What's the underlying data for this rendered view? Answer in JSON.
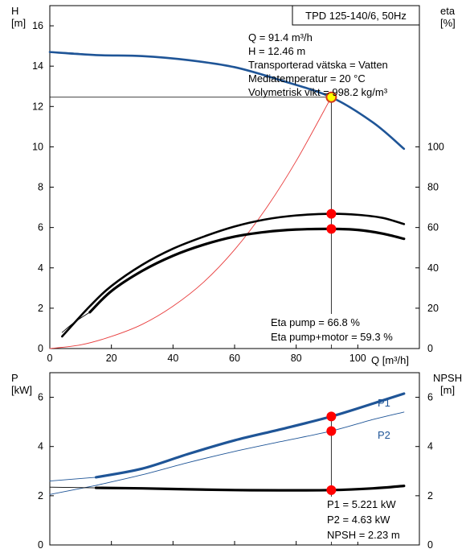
{
  "chart_data": [
    {
      "type": "line",
      "title": "TPD 125-140/6, 50Hz",
      "x_axis": {
        "label": "Q [m³/h]",
        "range": [
          0,
          120
        ],
        "ticks": [
          0,
          20,
          40,
          60,
          80,
          100
        ]
      },
      "y_left": {
        "label": "H",
        "unit": "[m]",
        "range": [
          0,
          17
        ],
        "ticks": [
          0,
          2,
          4,
          6,
          8,
          10,
          12,
          14,
          16
        ]
      },
      "y_right": {
        "label": "eta",
        "unit": "[%]",
        "range": [
          0,
          170
        ],
        "ticks": [
          0,
          20,
          40,
          60,
          80,
          100
        ]
      },
      "grid": false,
      "series": [
        {
          "color": "#1f5597",
          "axis": "left",
          "x": [
            0,
            15,
            30,
            45,
            60,
            75,
            91.4,
            105,
            115
          ],
          "y": [
            14.7,
            14.55,
            14.5,
            14.3,
            13.95,
            13.3,
            12.46,
            11.2,
            9.9
          ]
        },
        {
          "color": "#1f5597",
          "axis": "left",
          "style": "thin",
          "x": [
            0,
            8,
            15
          ],
          "y": [
            14.7,
            14.65,
            14.55
          ]
        },
        {
          "color": "#e83c3c",
          "axis": "left",
          "x": [
            0,
            10,
            20,
            30,
            40,
            50,
            60,
            70,
            80,
            91.4
          ],
          "y": [
            0,
            0.18,
            0.6,
            1.2,
            2.1,
            3.3,
            4.9,
            6.9,
            9.3,
            12.46
          ]
        },
        {
          "color": "#000000",
          "axis": "right",
          "x": [
            4,
            13,
            20,
            30,
            40,
            50,
            60,
            70,
            80,
            91.4,
            100,
            108,
            115
          ],
          "y": [
            6,
            21,
            31,
            41.5,
            49.5,
            55.5,
            60.5,
            64,
            66,
            66.8,
            66.3,
            64.8,
            61.7
          ]
        },
        {
          "color": "#000000",
          "axis": "right",
          "style": "thick",
          "x": [
            13,
            20,
            30,
            40,
            50,
            60,
            70,
            80,
            91.4,
            100,
            108,
            115
          ],
          "y": [
            18,
            28.5,
            38.5,
            46,
            51.5,
            55.5,
            57.8,
            59,
            59.3,
            58.8,
            57,
            54.4
          ]
        },
        {
          "color": "#000000",
          "axis": "right",
          "style": "thin",
          "x": [
            4,
            8,
            13
          ],
          "y": [
            8,
            13,
            18
          ]
        }
      ],
      "operating_point": {
        "x": 91.4,
        "y": 12.46,
        "color": "#ffff00"
      },
      "markers": [
        {
          "x": 91.4,
          "y": 66.8,
          "axis": "right",
          "color": "#ff0000"
        },
        {
          "x": 91.4,
          "y": 59.3,
          "axis": "right",
          "color": "#ff0000"
        }
      ],
      "annotations": [
        "Q = 91.4 m³/h",
        "H = 12.46 m",
        "Transporterad vätska = Vatten",
        "Mediatemperatur = 20 °C",
        "Volymetrisk vikt = 998.2 kg/m³"
      ],
      "eta_annotations": [
        "Eta pump = 66.8 %",
        "Eta pump+motor = 59.3 %"
      ]
    },
    {
      "type": "line",
      "x_axis": {
        "range": [
          0,
          120
        ]
      },
      "y_left": {
        "label": "P",
        "unit": "[kW]",
        "range": [
          0,
          7
        ],
        "ticks": [
          0,
          2,
          4,
          6
        ]
      },
      "y_right": {
        "label": "NPSH",
        "unit": "[m]",
        "range": [
          0,
          7
        ],
        "ticks": [
          0,
          2,
          4,
          6
        ]
      },
      "grid": false,
      "series": [
        {
          "name": "P1",
          "color": "#1f5597",
          "style": "thick",
          "x": [
            15,
            30,
            45,
            60,
            75,
            91.4,
            105,
            115
          ],
          "y": [
            2.75,
            3.1,
            3.7,
            4.25,
            4.7,
            5.221,
            5.75,
            6.15
          ]
        },
        {
          "name": "P2",
          "color": "#1f5597",
          "style": "thin",
          "x": [
            15,
            30,
            45,
            60,
            75,
            91.4,
            105,
            115
          ],
          "y": [
            2.42,
            2.85,
            3.35,
            3.8,
            4.2,
            4.63,
            5.1,
            5.4
          ]
        },
        {
          "color": "#1f5597",
          "style": "thin",
          "x": [
            0,
            15
          ],
          "y": [
            2.6,
            2.75
          ]
        },
        {
          "color": "#1f5597",
          "style": "thin",
          "x": [
            0,
            15
          ],
          "y": [
            2.05,
            2.42
          ]
        },
        {
          "color": "#000000",
          "style": "thick",
          "x": [
            15,
            30,
            45,
            60,
            75,
            91.4,
            105,
            115
          ],
          "y": [
            2.32,
            2.3,
            2.26,
            2.23,
            2.22,
            2.23,
            2.3,
            2.4
          ]
        },
        {
          "color": "#000000",
          "style": "thin",
          "x": [
            0,
            15
          ],
          "y": [
            2.35,
            2.32
          ]
        }
      ],
      "markers": [
        {
          "x": 91.4,
          "y": 5.221,
          "color": "#ff0000"
        },
        {
          "x": 91.4,
          "y": 4.63,
          "color": "#ff0000"
        },
        {
          "x": 91.4,
          "y": 2.23,
          "color": "#ff0000"
        }
      ],
      "annotations": [
        "P1 = 5.221 kW",
        "P2 = 4.63 kW",
        "NPSH = 2.23 m"
      ]
    }
  ]
}
